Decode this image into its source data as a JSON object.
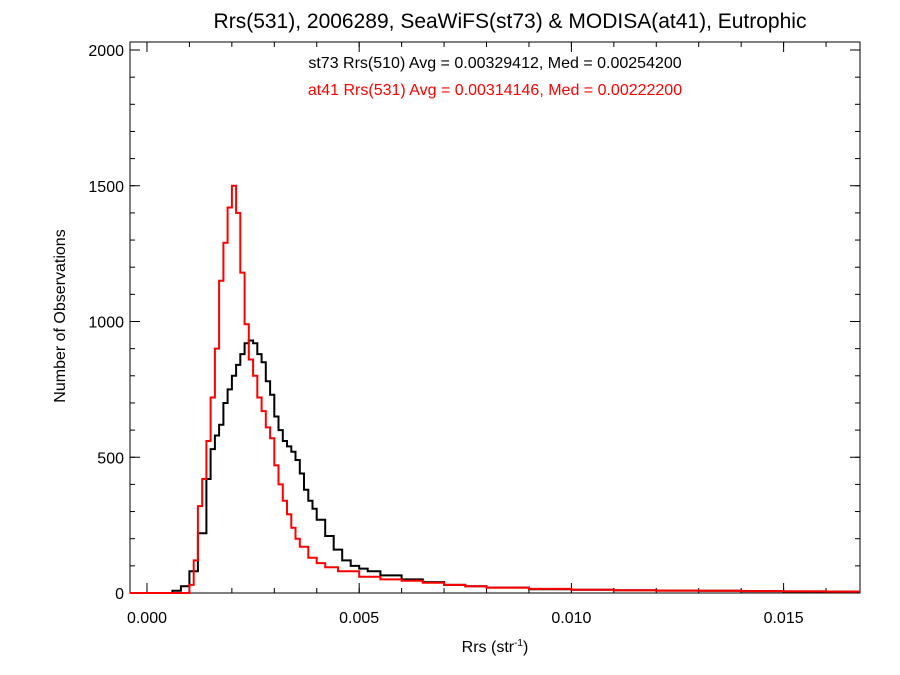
{
  "chart_data": {
    "type": "line",
    "title": "Rrs(531), 2006289, SeaWiFS(st73) & MODISA(at41), Eutrophic",
    "xlabel_main": "Rrs (str",
    "xlabel_sup": "-1",
    "xlabel_close": ")",
    "ylabel": "Number of Observations",
    "xlim": [
      -0.0004,
      0.0168
    ],
    "ylim": [
      0,
      2000
    ],
    "x_ticks": [
      0.0,
      0.005,
      0.01,
      0.015
    ],
    "x_tick_labels": [
      "0.000",
      "0.005",
      "0.010",
      "0.015"
    ],
    "y_ticks": [
      0,
      500,
      1000,
      1500,
      2000
    ],
    "y_tick_labels": [
      "0",
      "500",
      "1000",
      "1500",
      "2000"
    ],
    "grid": false,
    "series": [
      {
        "legend": "st73 Rrs(510) Avg = 0.00329412, Med = 0.00254200",
        "color": "#000000",
        "points": [
          [
            -0.0004,
            0
          ],
          [
            0.0004,
            0
          ],
          [
            0.0006,
            8
          ],
          [
            0.0008,
            25
          ],
          [
            0.001,
            80
          ],
          [
            0.0012,
            220
          ],
          [
            0.0014,
            420
          ],
          [
            0.0015,
            530
          ],
          [
            0.0016,
            580
          ],
          [
            0.0017,
            620
          ],
          [
            0.0018,
            700
          ],
          [
            0.0019,
            750
          ],
          [
            0.002,
            800
          ],
          [
            0.0021,
            840
          ],
          [
            0.0022,
            880
          ],
          [
            0.0023,
            920
          ],
          [
            0.0024,
            930
          ],
          [
            0.0025,
            920
          ],
          [
            0.0026,
            880
          ],
          [
            0.0027,
            850
          ],
          [
            0.0028,
            780
          ],
          [
            0.0029,
            730
          ],
          [
            0.003,
            650
          ],
          [
            0.0031,
            600
          ],
          [
            0.0032,
            560
          ],
          [
            0.0033,
            540
          ],
          [
            0.0034,
            520
          ],
          [
            0.0035,
            490
          ],
          [
            0.0036,
            440
          ],
          [
            0.0037,
            380
          ],
          [
            0.0038,
            340
          ],
          [
            0.0039,
            310
          ],
          [
            0.004,
            270
          ],
          [
            0.0042,
            210
          ],
          [
            0.0044,
            160
          ],
          [
            0.0046,
            120
          ],
          [
            0.0048,
            100
          ],
          [
            0.005,
            90
          ],
          [
            0.0052,
            80
          ],
          [
            0.0055,
            65
          ],
          [
            0.006,
            50
          ],
          [
            0.0065,
            40
          ],
          [
            0.007,
            30
          ],
          [
            0.0075,
            25
          ],
          [
            0.008,
            20
          ],
          [
            0.009,
            14
          ],
          [
            0.01,
            12
          ],
          [
            0.011,
            10
          ],
          [
            0.012,
            9
          ],
          [
            0.013,
            8
          ],
          [
            0.014,
            7
          ],
          [
            0.015,
            6
          ],
          [
            0.016,
            5
          ],
          [
            0.0168,
            5
          ]
        ]
      },
      {
        "legend": "at41 Rrs(531) Avg = 0.00314146, Med = 0.00222200",
        "color": "#ff0000",
        "points": [
          [
            -0.0004,
            0
          ],
          [
            0.0008,
            0
          ],
          [
            0.001,
            30
          ],
          [
            0.0011,
            120
          ],
          [
            0.0012,
            320
          ],
          [
            0.0013,
            420
          ],
          [
            0.0014,
            560
          ],
          [
            0.0015,
            720
          ],
          [
            0.0016,
            900
          ],
          [
            0.0017,
            1150
          ],
          [
            0.0018,
            1290
          ],
          [
            0.0019,
            1420
          ],
          [
            0.002,
            1500
          ],
          [
            0.0021,
            1400
          ],
          [
            0.0022,
            1180
          ],
          [
            0.0023,
            990
          ],
          [
            0.0024,
            860
          ],
          [
            0.0025,
            800
          ],
          [
            0.0026,
            720
          ],
          [
            0.0027,
            670
          ],
          [
            0.0028,
            610
          ],
          [
            0.0029,
            570
          ],
          [
            0.003,
            470
          ],
          [
            0.0031,
            400
          ],
          [
            0.0032,
            340
          ],
          [
            0.0033,
            290
          ],
          [
            0.0034,
            240
          ],
          [
            0.0035,
            200
          ],
          [
            0.0036,
            170
          ],
          [
            0.0038,
            130
          ],
          [
            0.004,
            110
          ],
          [
            0.0042,
            95
          ],
          [
            0.0045,
            80
          ],
          [
            0.005,
            60
          ],
          [
            0.0055,
            50
          ],
          [
            0.006,
            45
          ],
          [
            0.0065,
            38
          ],
          [
            0.007,
            30
          ],
          [
            0.0075,
            25
          ],
          [
            0.008,
            20
          ],
          [
            0.009,
            15
          ],
          [
            0.01,
            12
          ],
          [
            0.011,
            10
          ],
          [
            0.012,
            9
          ],
          [
            0.013,
            8
          ],
          [
            0.014,
            7
          ],
          [
            0.015,
            6
          ],
          [
            0.016,
            5
          ],
          [
            0.0168,
            5
          ]
        ]
      }
    ]
  }
}
